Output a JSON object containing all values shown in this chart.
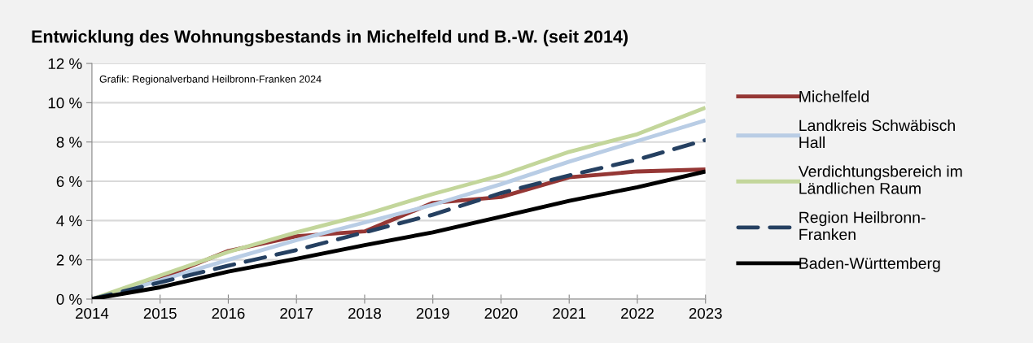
{
  "chart_data": {
    "type": "line",
    "title": "Entwicklung des Wohnungsbestands in Michelfeld und B.-W. (seit 2014)",
    "x": [
      2014,
      2015,
      2016,
      2017,
      2018,
      2019,
      2020,
      2021,
      2022,
      2023
    ],
    "series": [
      {
        "name": "Michelfeld",
        "color": "#953735",
        "values": [
          0,
          1.05,
          2.45,
          3.2,
          3.45,
          4.9,
          5.2,
          6.2,
          6.5,
          6.6
        ]
      },
      {
        "name": "Landkreis Schwäbisch\nHall",
        "color": "#b9cde5",
        "values": [
          0,
          0.95,
          2.0,
          3.0,
          3.9,
          4.8,
          5.85,
          7.0,
          8.05,
          9.1
        ]
      },
      {
        "name": "Verdichtungsbereich im\nLändlichen Raum",
        "color": "#c3d69b",
        "values": [
          0,
          1.2,
          2.4,
          3.4,
          4.3,
          5.35,
          6.3,
          7.5,
          8.4,
          9.75
        ]
      },
      {
        "name": "Region Heilbronn-\nFranken",
        "color": "#254061",
        "line_style": "dashed",
        "values": [
          0,
          0.85,
          1.7,
          2.5,
          3.4,
          4.3,
          5.4,
          6.3,
          7.1,
          8.1
        ]
      },
      {
        "name": "Baden-Württemberg",
        "color": "#000000",
        "values": [
          0,
          0.6,
          1.4,
          2.05,
          2.75,
          3.4,
          4.2,
          5.0,
          5.7,
          6.5
        ]
      }
    ],
    "xlim": [
      2014,
      2023
    ],
    "xticks": [
      2014,
      2015,
      2016,
      2017,
      2018,
      2019,
      2020,
      2021,
      2022,
      2023
    ],
    "ylim": [
      0,
      12
    ],
    "yticks": [
      {
        "value": 0,
        "label": "0 %"
      },
      {
        "value": 2,
        "label": "2 %"
      },
      {
        "value": 4,
        "label": "4 %"
      },
      {
        "value": 6,
        "label": "6 %"
      },
      {
        "value": 8,
        "label": "8 %"
      },
      {
        "value": 10,
        "label": "10 %"
      },
      {
        "value": 12,
        "label": "12 %"
      }
    ],
    "grid": "y",
    "legend": "right",
    "marker": "none",
    "line_style": "solid",
    "annotations": [
      "Grafik: Regionalverband Heilbronn-Franken 2024"
    ]
  }
}
